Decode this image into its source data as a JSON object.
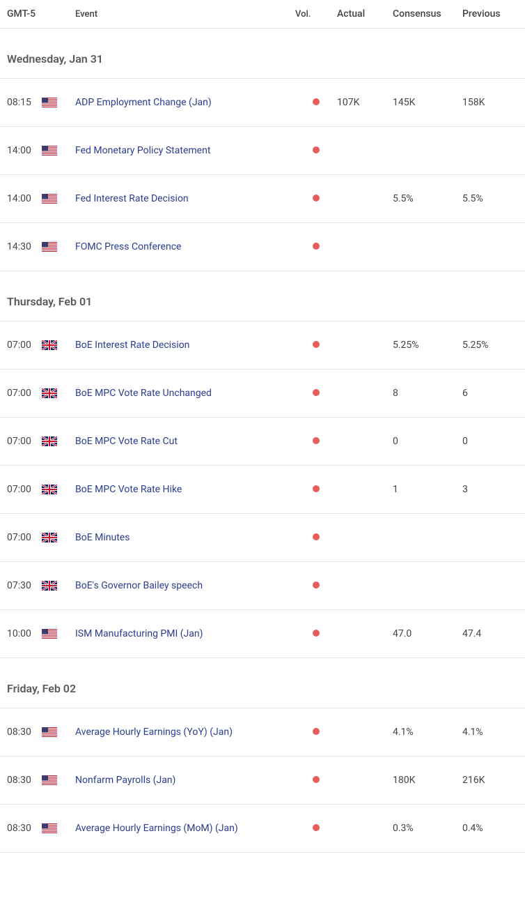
{
  "columns": {
    "time": "GMT-5",
    "event": "Event",
    "vol": "Vol.",
    "actual": "Actual",
    "consensus": "Consensus",
    "previous": "Previous"
  },
  "volatility_dot_color": "#e85c5c",
  "event_link_color": "#2a3e8f",
  "border_color": "#e5e5e5",
  "flags": {
    "us": "US",
    "uk": "UK"
  },
  "groups": [
    {
      "date_label": "Wednesday, Jan 31",
      "events": [
        {
          "time": "08:15",
          "flag": "us",
          "name": "ADP Employment Change (Jan)",
          "vol": "high",
          "actual": "107K",
          "consensus": "145K",
          "previous": "158K"
        },
        {
          "time": "14:00",
          "flag": "us",
          "name": "Fed Monetary Policy Statement",
          "vol": "high",
          "actual": "",
          "consensus": "",
          "previous": ""
        },
        {
          "time": "14:00",
          "flag": "us",
          "name": "Fed Interest Rate Decision",
          "vol": "high",
          "actual": "",
          "consensus": "5.5%",
          "previous": "5.5%"
        },
        {
          "time": "14:30",
          "flag": "us",
          "name": "FOMC Press Conference",
          "vol": "high",
          "actual": "",
          "consensus": "",
          "previous": ""
        }
      ]
    },
    {
      "date_label": "Thursday, Feb 01",
      "events": [
        {
          "time": "07:00",
          "flag": "uk",
          "name": "BoE Interest Rate Decision",
          "vol": "high",
          "actual": "",
          "consensus": "5.25%",
          "previous": "5.25%"
        },
        {
          "time": "07:00",
          "flag": "uk",
          "name": "BoE MPC Vote Rate Unchanged",
          "vol": "high",
          "actual": "",
          "consensus": "8",
          "previous": "6"
        },
        {
          "time": "07:00",
          "flag": "uk",
          "name": "BoE MPC Vote Rate Cut",
          "vol": "high",
          "actual": "",
          "consensus": "0",
          "previous": "0"
        },
        {
          "time": "07:00",
          "flag": "uk",
          "name": "BoE MPC Vote Rate Hike",
          "vol": "high",
          "actual": "",
          "consensus": "1",
          "previous": "3"
        },
        {
          "time": "07:00",
          "flag": "uk",
          "name": "BoE Minutes",
          "vol": "high",
          "actual": "",
          "consensus": "",
          "previous": ""
        },
        {
          "time": "07:30",
          "flag": "uk",
          "name": "BoE's Governor Bailey speech",
          "vol": "high",
          "actual": "",
          "consensus": "",
          "previous": ""
        },
        {
          "time": "10:00",
          "flag": "us",
          "name": "ISM Manufacturing PMI (Jan)",
          "vol": "high",
          "actual": "",
          "consensus": "47.0",
          "previous": "47.4"
        }
      ]
    },
    {
      "date_label": "Friday, Feb 02",
      "events": [
        {
          "time": "08:30",
          "flag": "us",
          "name": "Average Hourly Earnings (YoY) (Jan)",
          "vol": "high",
          "actual": "",
          "consensus": "4.1%",
          "previous": "4.1%"
        },
        {
          "time": "08:30",
          "flag": "us",
          "name": "Nonfarm Payrolls (Jan)",
          "vol": "high",
          "actual": "",
          "consensus": "180K",
          "previous": "216K"
        },
        {
          "time": "08:30",
          "flag": "us",
          "name": "Average Hourly Earnings (MoM) (Jan)",
          "vol": "high",
          "actual": "",
          "consensus": "0.3%",
          "previous": "0.4%"
        }
      ]
    }
  ]
}
